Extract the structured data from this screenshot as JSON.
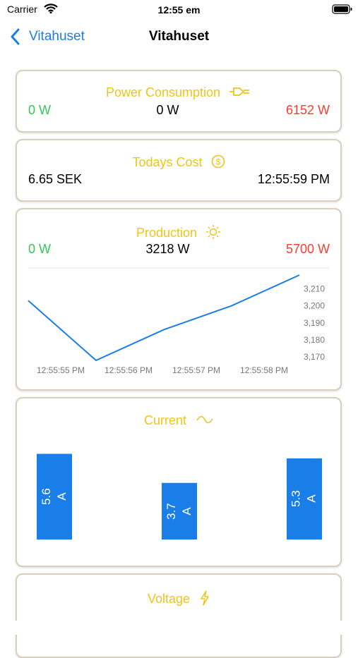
{
  "status_bar": {
    "carrier": "Carrier",
    "time": "12:55 em"
  },
  "nav": {
    "back": "Vitahuset",
    "title": "Vitahuset"
  },
  "power_consumption": {
    "title": "Power Consumption",
    "min": "0 W",
    "current": "0  W",
    "max": "6152 W"
  },
  "todays_cost": {
    "title": "Todays Cost",
    "amount": "6.65  SEK",
    "time": "12:55:59 PM"
  },
  "production": {
    "title": "Production",
    "min": "0 W",
    "current": "3218  W",
    "max": "5700 W",
    "chart": {
      "type": "line",
      "categories": [
        "12:55:55 PM",
        "12:55:56 PM",
        "12:55:57 PM",
        "12:55:58 PM",
        null
      ],
      "values": [
        3203,
        3168,
        3186,
        3200,
        3218
      ],
      "color": "#1a7ee8",
      "ylim": [
        3168,
        3218
      ],
      "yticks": [
        {
          "value": 3170,
          "label": "3,170"
        },
        {
          "value": 3180,
          "label": "3,180"
        },
        {
          "value": 3190,
          "label": "3,190"
        },
        {
          "value": 3200,
          "label": "3,200"
        },
        {
          "value": 3210,
          "label": "3,210"
        }
      ]
    }
  },
  "current": {
    "title": "Current",
    "chart": {
      "type": "bar",
      "values": [
        5.6,
        3.7,
        5.3
      ],
      "value_labels": [
        "5.6\nA",
        "3.7\nA",
        "5.3\nA"
      ],
      "color": "#1a7ee8",
      "ylim": [
        0,
        6
      ]
    }
  },
  "voltage": {
    "title": "Voltage"
  }
}
